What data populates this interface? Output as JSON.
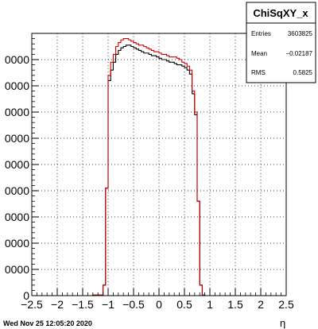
{
  "chart_data": {
    "type": "line",
    "title": "",
    "xlabel": "η",
    "ylabel": "",
    "xlim": [
      -2.5,
      2.5
    ],
    "ylim": [
      0,
      100000
    ],
    "grid": true,
    "x_ticks": [
      -2.5,
      -2,
      -1.5,
      -1,
      -0.5,
      0,
      0.5,
      1,
      1.5,
      2,
      2.5
    ],
    "x_tick_labels": [
      "−2.5",
      "−2",
      "−1.5",
      "−1",
      "−0.5",
      "0",
      "0.5",
      "1",
      "1.5",
      "2",
      "2.5"
    ],
    "y_ticks": [
      0,
      10000,
      20000,
      30000,
      40000,
      50000,
      60000,
      70000,
      80000,
      90000
    ],
    "y_tick_labels": [
      "0",
      "0000",
      "0000",
      "0000",
      "0000",
      "0000",
      "0000",
      "0000",
      "0000",
      "0000"
    ],
    "bin_edges_x": [
      -2.5,
      -1.3,
      -1.1,
      -1.05,
      -1.0,
      -0.95,
      -0.9,
      -0.85,
      -0.8,
      -0.75,
      -0.7,
      -0.65,
      -0.6,
      -0.55,
      -0.5,
      -0.45,
      -0.4,
      -0.35,
      -0.3,
      -0.25,
      -0.2,
      -0.15,
      -0.1,
      -0.05,
      0.0,
      0.05,
      0.1,
      0.15,
      0.2,
      0.25,
      0.3,
      0.35,
      0.4,
      0.45,
      0.5,
      0.55,
      0.6,
      0.65,
      0.7,
      0.75,
      0.8,
      0.85,
      0.9,
      0.95,
      1.0,
      1.05,
      1.1,
      1.3,
      2.5
    ],
    "series": [
      {
        "color": "#000000",
        "values": [
          0,
          200,
          4000,
          41000,
          82000,
          86000,
          89000,
          92000,
          93500,
          94500,
          95000,
          95500,
          95500,
          95000,
          94500,
          94000,
          93500,
          93000,
          92500,
          92500,
          92000,
          91500,
          91500,
          91000,
          90500,
          90000,
          90000,
          89500,
          89000,
          89000,
          88500,
          88000,
          88000,
          87500,
          87000,
          86000,
          84500,
          77000,
          69000,
          36000,
          4000,
          200,
          0
        ]
      },
      {
        "color": "#cc0000",
        "values": [
          0,
          200,
          4000,
          41000,
          84000,
          89000,
          92000,
          95000,
          96500,
          97500,
          98000,
          98000,
          97500,
          97000,
          96500,
          96000,
          95500,
          95500,
          95000,
          94500,
          94000,
          93500,
          93000,
          93000,
          92500,
          92000,
          92000,
          91500,
          91000,
          91000,
          91000,
          90500,
          90000,
          89000,
          88500,
          87500,
          86000,
          78000,
          70000,
          36000,
          4000,
          200,
          0
        ]
      }
    ]
  },
  "stats_box": {
    "title": "ChiSqXY_x",
    "entries_label": "Entries",
    "entries_value": "3603825",
    "mean_label": "Mean",
    "mean_value": "−0.02187",
    "rms_label": "RMS",
    "rms_value": "0.5825"
  },
  "footer": {
    "timestamp": "Wed Nov 25 12:05:20 2020"
  }
}
